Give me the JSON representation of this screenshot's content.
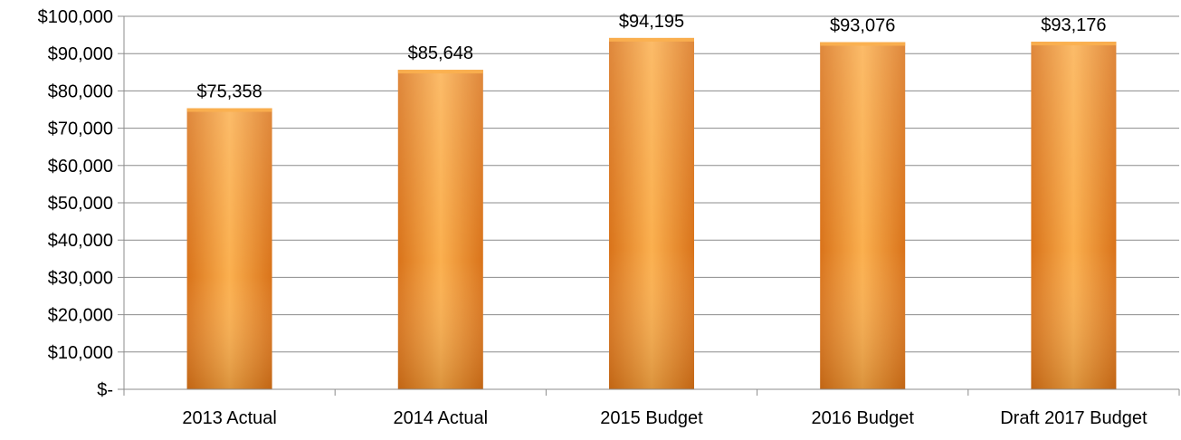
{
  "chart_data": {
    "type": "bar",
    "categories": [
      "2013 Actual",
      "2014 Actual",
      "2015 Budget",
      "2016 Budget",
      "Draft 2017 Budget"
    ],
    "values": [
      75358,
      85648,
      94195,
      93076,
      93176
    ],
    "data_labels": [
      "$75,358",
      "$85,648",
      "$94,195",
      "$93,076",
      "$93,176"
    ],
    "y_ticks": [
      0,
      10000,
      20000,
      30000,
      40000,
      50000,
      60000,
      70000,
      80000,
      90000,
      100000
    ],
    "y_tick_labels": [
      "$-",
      "$10,000",
      "$20,000",
      "$30,000",
      "$40,000",
      "$50,000",
      "$60,000",
      "$70,000",
      "$80,000",
      "$90,000",
      "$100,000"
    ],
    "ylim": [
      0,
      100000
    ],
    "grid": true,
    "legend": "none",
    "title": "",
    "xlabel": "",
    "ylabel": "",
    "colors": {
      "bar_light": "#fbb04f",
      "bar_mid": "#f39a2c",
      "bar_dark": "#d9731a",
      "grid": "#8c8c8c",
      "axis": "#8c8c8c"
    }
  }
}
